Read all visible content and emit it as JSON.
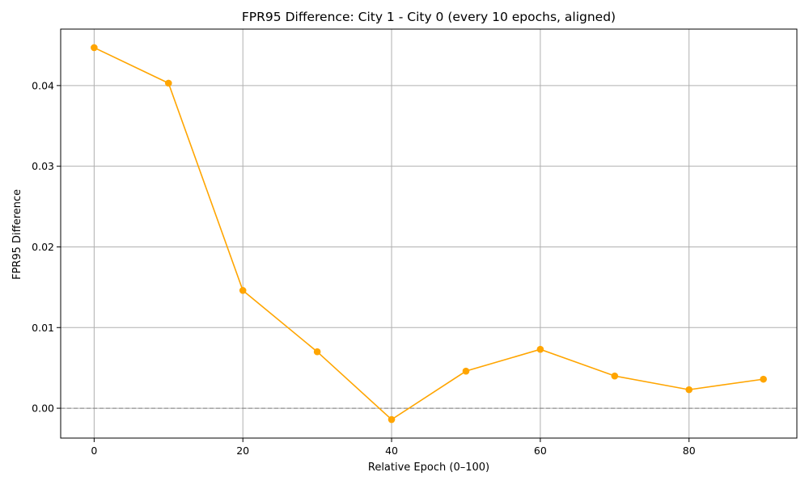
{
  "chart_data": {
    "type": "line",
    "title": "FPR95 Difference: City 1 - City 0 (every 10 epochs, aligned)",
    "xlabel": "Relative Epoch (0–100)",
    "ylabel": "FPR95 Difference",
    "x": [
      0,
      10,
      20,
      30,
      40,
      50,
      60,
      70,
      80,
      90
    ],
    "series": [
      {
        "name": "",
        "color": "#FFA500",
        "marker": "circle",
        "values": [
          0.0447,
          0.0403,
          0.0146,
          0.007,
          -0.0014,
          0.0046,
          0.0073,
          0.004,
          0.0023,
          0.0036
        ]
      }
    ],
    "xlim": [
      -4.5,
      94.5
    ],
    "ylim": [
      -0.0037,
      0.047
    ],
    "xticks": [
      0,
      20,
      40,
      60,
      80
    ],
    "xtick_labels": [
      "0",
      "20",
      "40",
      "60",
      "80"
    ],
    "yticks": [
      0.0,
      0.01,
      0.02,
      0.03,
      0.04
    ],
    "ytick_labels": [
      "0.00",
      "0.01",
      "0.02",
      "0.03",
      "0.04"
    ],
    "grid": true,
    "reference_line": {
      "y": 0,
      "style": "dashed",
      "color": "#808080"
    }
  }
}
